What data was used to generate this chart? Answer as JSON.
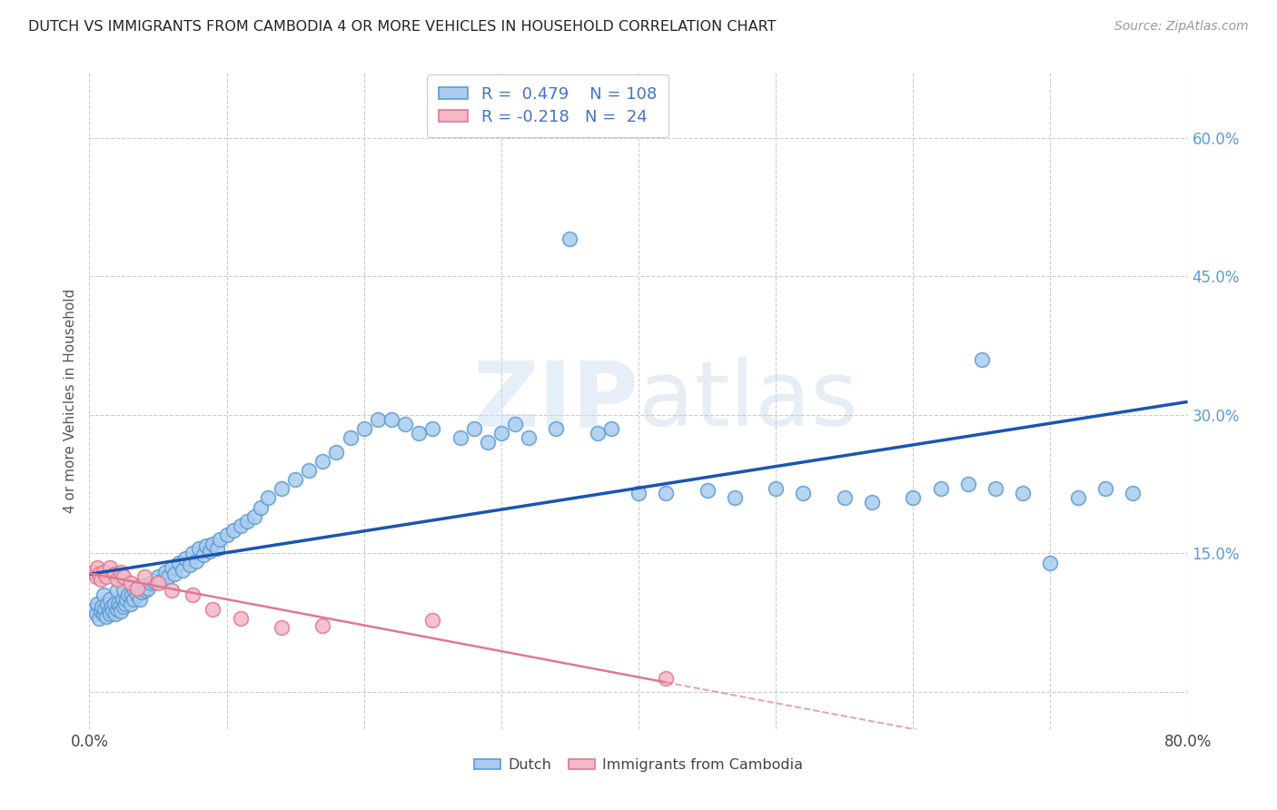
{
  "title": "DUTCH VS IMMIGRANTS FROM CAMBODIA 4 OR MORE VEHICLES IN HOUSEHOLD CORRELATION CHART",
  "source": "Source: ZipAtlas.com",
  "ylabel": "4 or more Vehicles in Household",
  "xlim": [
    0.0,
    0.8
  ],
  "ylim": [
    -0.04,
    0.67
  ],
  "xtick_positions": [
    0.0,
    0.1,
    0.2,
    0.3,
    0.4,
    0.5,
    0.6,
    0.7,
    0.8
  ],
  "ytick_positions": [
    0.0,
    0.15,
    0.3,
    0.45,
    0.6
  ],
  "dutch_fill": "#aaccee",
  "dutch_edge": "#5b9bd5",
  "cam_fill": "#f4b8c8",
  "cam_edge": "#e07890",
  "dutch_line_color": "#1a56b0",
  "cam_line_color": "#e07890",
  "label_color_right": "#5b9bd5",
  "label_color_left": "#5b9bd5",
  "R_dutch": 0.479,
  "N_dutch": 108,
  "R_cam": -0.218,
  "N_cam": 24,
  "watermark": "ZIPatlas",
  "legend_color": "#4472c4",
  "dutch_x": [
    0.003,
    0.005,
    0.006,
    0.007,
    0.008,
    0.009,
    0.01,
    0.01,
    0.011,
    0.012,
    0.013,
    0.014,
    0.015,
    0.015,
    0.016,
    0.017,
    0.018,
    0.019,
    0.02,
    0.02,
    0.021,
    0.022,
    0.023,
    0.024,
    0.025,
    0.025,
    0.026,
    0.027,
    0.028,
    0.03,
    0.031,
    0.032,
    0.033,
    0.035,
    0.036,
    0.037,
    0.038,
    0.04,
    0.041,
    0.043,
    0.045,
    0.047,
    0.05,
    0.052,
    0.055,
    0.057,
    0.06,
    0.062,
    0.065,
    0.068,
    0.07,
    0.073,
    0.075,
    0.078,
    0.08,
    0.083,
    0.085,
    0.088,
    0.09,
    0.093,
    0.095,
    0.1,
    0.105,
    0.11,
    0.115,
    0.12,
    0.125,
    0.13,
    0.14,
    0.15,
    0.16,
    0.17,
    0.18,
    0.19,
    0.2,
    0.21,
    0.22,
    0.23,
    0.24,
    0.25,
    0.27,
    0.28,
    0.29,
    0.3,
    0.31,
    0.32,
    0.34,
    0.35,
    0.37,
    0.38,
    0.4,
    0.42,
    0.45,
    0.47,
    0.5,
    0.52,
    0.55,
    0.57,
    0.6,
    0.62,
    0.64,
    0.65,
    0.66,
    0.68,
    0.7,
    0.72,
    0.74,
    0.76
  ],
  "dutch_y": [
    0.09,
    0.085,
    0.095,
    0.08,
    0.088,
    0.092,
    0.085,
    0.105,
    0.09,
    0.082,
    0.095,
    0.088,
    0.085,
    0.1,
    0.092,
    0.088,
    0.095,
    0.085,
    0.09,
    0.11,
    0.095,
    0.092,
    0.088,
    0.1,
    0.092,
    0.11,
    0.095,
    0.1,
    0.105,
    0.095,
    0.105,
    0.1,
    0.11,
    0.105,
    0.115,
    0.1,
    0.108,
    0.115,
    0.11,
    0.112,
    0.118,
    0.12,
    0.125,
    0.12,
    0.13,
    0.125,
    0.135,
    0.128,
    0.14,
    0.132,
    0.145,
    0.138,
    0.15,
    0.142,
    0.155,
    0.148,
    0.158,
    0.152,
    0.16,
    0.155,
    0.165,
    0.17,
    0.175,
    0.18,
    0.185,
    0.19,
    0.2,
    0.21,
    0.22,
    0.23,
    0.24,
    0.25,
    0.26,
    0.275,
    0.285,
    0.295,
    0.295,
    0.29,
    0.28,
    0.285,
    0.275,
    0.285,
    0.27,
    0.28,
    0.29,
    0.275,
    0.285,
    0.49,
    0.28,
    0.285,
    0.215,
    0.215,
    0.218,
    0.21,
    0.22,
    0.215,
    0.21,
    0.205,
    0.21,
    0.22,
    0.225,
    0.36,
    0.22,
    0.215,
    0.14,
    0.21,
    0.22,
    0.215
  ],
  "cam_x": [
    0.003,
    0.005,
    0.006,
    0.007,
    0.008,
    0.01,
    0.012,
    0.015,
    0.018,
    0.02,
    0.023,
    0.025,
    0.03,
    0.035,
    0.04,
    0.05,
    0.06,
    0.075,
    0.09,
    0.11,
    0.14,
    0.17,
    0.25,
    0.42
  ],
  "cam_y": [
    0.13,
    0.125,
    0.135,
    0.128,
    0.122,
    0.13,
    0.125,
    0.135,
    0.128,
    0.122,
    0.13,
    0.125,
    0.118,
    0.112,
    0.125,
    0.118,
    0.11,
    0.105,
    0.09,
    0.08,
    0.07,
    0.072,
    0.078,
    0.015
  ]
}
